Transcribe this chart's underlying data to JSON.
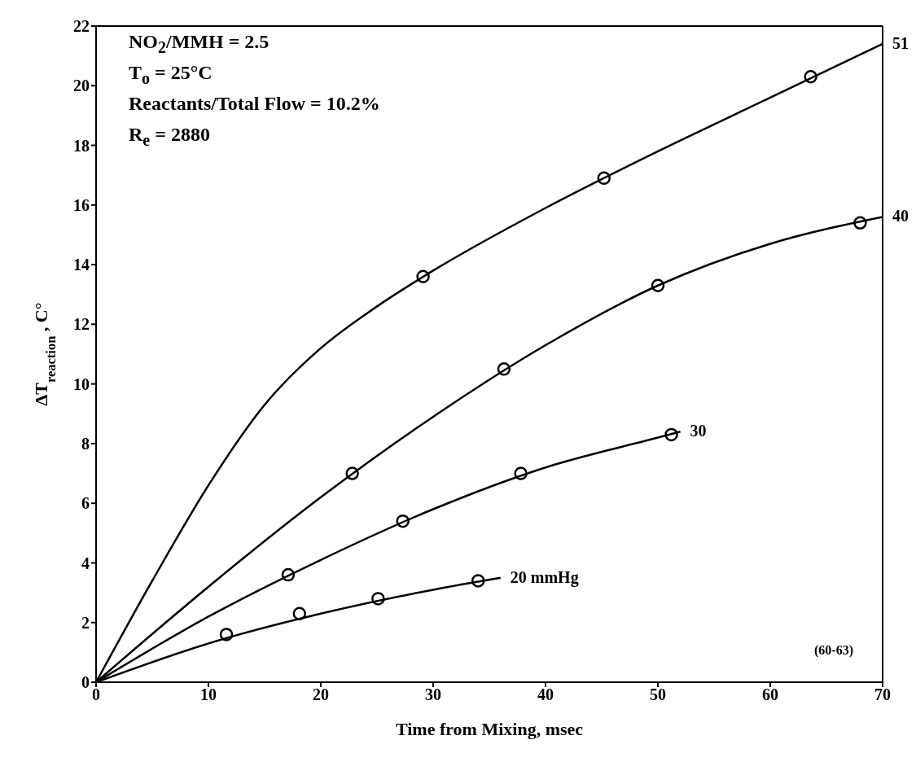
{
  "chart_data": {
    "type": "line",
    "xlabel": "Time from Mixing, msec",
    "ylabel": "ΔT$_{reaction}$, C°",
    "xlim": [
      0,
      70
    ],
    "xticks": [
      0,
      10,
      20,
      30,
      40,
      50,
      60,
      70
    ],
    "ylim": [
      0,
      22
    ],
    "yticks": [
      0,
      2,
      4,
      6,
      8,
      10,
      12,
      14,
      16,
      18,
      20,
      22
    ],
    "grid": false,
    "legend": false,
    "marker": "circle",
    "line_style": "solid",
    "annotations": [
      "NO$_{2}$/MMH = 2.5",
      "T$_{o}$ = 25°C",
      "Reactants/Total Flow = 10.2%",
      "R$_{e}$ = 2880",
      "(60-63)"
    ],
    "series": [
      {
        "marker": "none",
        "name": "51",
        "color": "#000000",
        "x": [
          0,
          5,
          10,
          15,
          20,
          25,
          30,
          40,
          50,
          60,
          70
        ],
        "values": [
          0,
          3.4,
          6.6,
          9.3,
          11.2,
          12.6,
          13.8,
          15.9,
          17.8,
          19.6,
          21.4
        ]
      },
      {
        "marker": "none",
        "name": "40",
        "color": "#000000",
        "x": [
          0,
          10,
          20,
          30,
          40,
          50,
          60,
          70
        ],
        "values": [
          0,
          3.2,
          6.2,
          8.9,
          11.3,
          13.3,
          14.7,
          15.6
        ]
      },
      {
        "marker": "none",
        "name": "30",
        "color": "#000000",
        "x": [
          0,
          10,
          20,
          30,
          40,
          50,
          52
        ],
        "values": [
          0,
          2.2,
          4.1,
          5.8,
          7.2,
          8.2,
          8.4
        ]
      },
      {
        "marker": "none",
        "name": "20 mmHg",
        "color": "#000000",
        "x": [
          0,
          10,
          20,
          30,
          36
        ],
        "values": [
          0,
          1.3,
          2.3,
          3.1,
          3.5
        ]
      },
      {
        "type": "scatter",
        "color": "#000000",
        "x": [
          29.1,
          45.2,
          63.6
        ],
        "values": [
          13.6,
          16.9,
          20.3
        ]
      },
      {
        "type": "scatter",
        "color": "#000000",
        "x": [
          22.8,
          36.3,
          50,
          68
        ],
        "values": [
          7,
          10.5,
          13.3,
          15.4
        ]
      },
      {
        "type": "scatter",
        "color": "#000000",
        "x": [
          17.1,
          27.3,
          37.8,
          51.2
        ],
        "values": [
          3.6,
          5.4,
          7,
          8.3
        ]
      },
      {
        "type": "scatter",
        "color": "#000000",
        "x": [
          11.6,
          18.1,
          25.1,
          34
        ],
        "values": [
          1.6,
          2.3,
          2.8,
          3.4
        ]
      }
    ]
  }
}
